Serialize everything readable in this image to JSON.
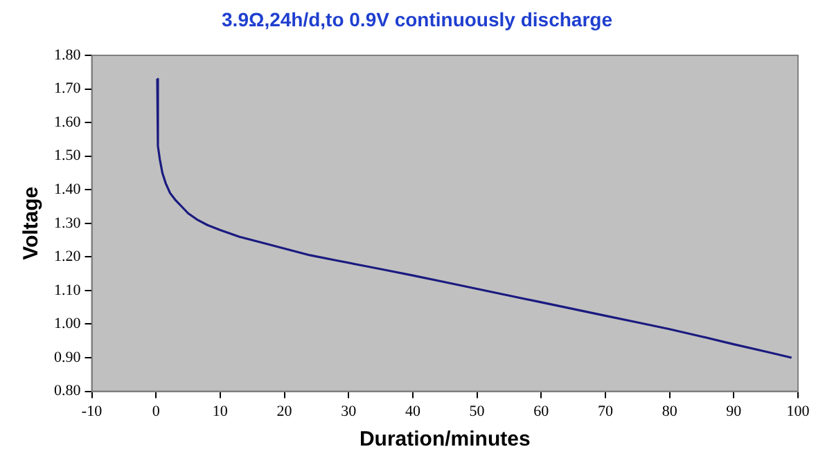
{
  "chart_data": {
    "type": "line",
    "title": "3.9Ω,24h/d,to 0.9V continuously discharge",
    "xlabel": "Duration/minutes",
    "ylabel": "Voltage",
    "series": [
      {
        "color": "#1a1a80",
        "x": [
          0.2,
          0.3,
          0.6,
          1,
          1.5,
          2.2,
          3,
          4,
          5,
          6.5,
          8,
          10,
          13,
          16,
          20,
          24,
          28,
          32,
          36,
          40,
          45,
          50,
          55,
          60,
          65,
          70,
          75,
          80,
          85,
          90,
          95,
          99
        ],
        "values": [
          1.73,
          1.53,
          1.49,
          1.45,
          1.42,
          1.39,
          1.37,
          1.35,
          1.33,
          1.31,
          1.295,
          1.28,
          1.26,
          1.245,
          1.225,
          1.205,
          1.19,
          1.175,
          1.16,
          1.145,
          1.125,
          1.105,
          1.085,
          1.065,
          1.045,
          1.025,
          1.005,
          0.985,
          0.963,
          0.94,
          0.918,
          0.9
        ]
      }
    ],
    "xlim": [
      -10,
      100
    ],
    "xticks": [
      -10,
      0,
      10,
      20,
      30,
      40,
      50,
      60,
      70,
      80,
      90,
      100
    ],
    "ylim": [
      0.8,
      1.8
    ],
    "yticks": [
      {
        "value": 0.8,
        "label": "0.80"
      },
      {
        "value": 0.9,
        "label": "0.90"
      },
      {
        "value": 1,
        "label": "1.00"
      },
      {
        "value": 1.1,
        "label": "1.10"
      },
      {
        "value": 1.2,
        "label": "1.20"
      },
      {
        "value": 1.3,
        "label": "1.30"
      },
      {
        "value": 1.4,
        "label": "1.40"
      },
      {
        "value": 1.5,
        "label": "1.50"
      },
      {
        "value": 1.6,
        "label": "1.60"
      },
      {
        "value": 1.7,
        "label": "1.70"
      },
      {
        "value": 1.8,
        "label": "1.80"
      }
    ],
    "grid": false,
    "legend": false,
    "marker": "none",
    "line_style": "solid"
  }
}
